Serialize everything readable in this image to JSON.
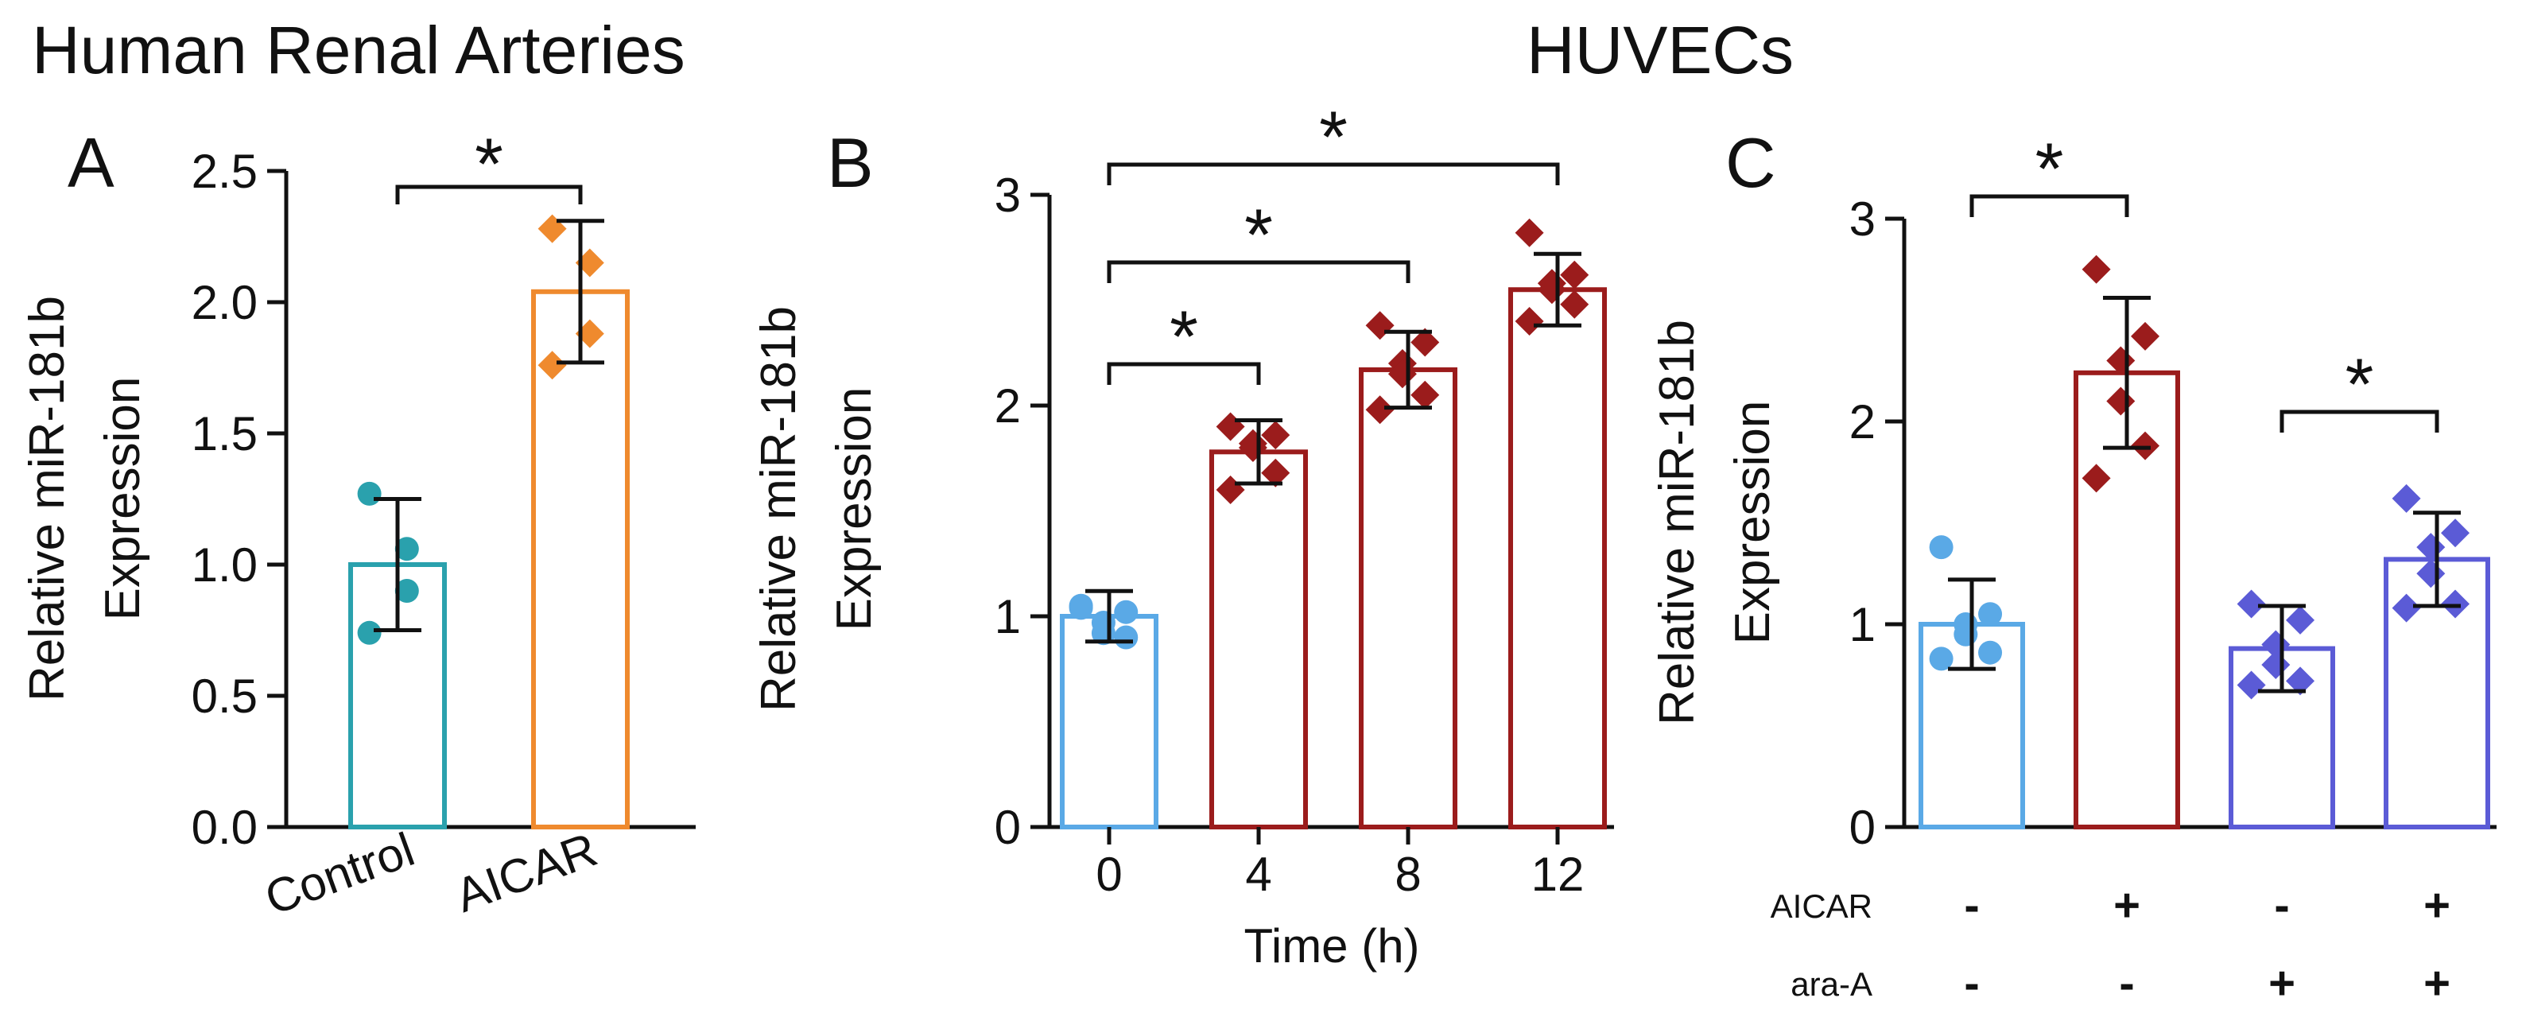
{
  "titles": {
    "left": "Human Renal Arteries",
    "right": "HUVECs"
  },
  "chart_data": [
    {
      "panel": "A",
      "type": "bar",
      "title": "Human Renal Arteries",
      "ylabel": [
        "Relative miR-181b",
        "Expression"
      ],
      "xlabel": "",
      "ylim": [
        0,
        2.5
      ],
      "yticks": [
        "0.0",
        "0.5",
        "1.0",
        "1.5",
        "2.0",
        "2.5"
      ],
      "ytick_values": [
        0,
        0.5,
        1.0,
        1.5,
        2.0,
        2.5
      ],
      "categories": [
        "Control",
        "AICAR"
      ],
      "values": [
        1.0,
        2.04
      ],
      "errors": [
        0.25,
        0.27
      ],
      "colors": [
        "#2aa1ad",
        "#ef8a2e"
      ],
      "markers": [
        "circle",
        "diamond"
      ],
      "points": [
        [
          1.27,
          1.06,
          0.9,
          0.74
        ],
        [
          2.28,
          2.15,
          1.88,
          1.76
        ]
      ],
      "significance": [
        {
          "from": 0,
          "to": 1,
          "label": "*"
        }
      ]
    },
    {
      "panel": "B",
      "type": "bar",
      "title": "HUVECs",
      "ylabel": [
        "Relative miR-181b",
        "Expression"
      ],
      "xlabel": "Time (h)",
      "ylim": [
        0,
        3
      ],
      "yticks": [
        "0",
        "1",
        "2",
        "3"
      ],
      "ytick_values": [
        0,
        1,
        2,
        3
      ],
      "categories": [
        "0",
        "4",
        "8",
        "12"
      ],
      "values": [
        1.0,
        1.78,
        2.17,
        2.55
      ],
      "errors": [
        0.12,
        0.15,
        0.18,
        0.17
      ],
      "colors": [
        "#5aa9e6",
        "#9b1c1c",
        "#9b1c1c",
        "#9b1c1c"
      ],
      "markers": [
        "circle",
        "diamond",
        "diamond",
        "diamond"
      ],
      "points": [
        [
          1.04,
          1.02,
          0.97,
          0.92,
          0.9,
          1.05
        ],
        [
          1.9,
          1.86,
          1.82,
          1.8,
          1.68,
          1.6
        ],
        [
          2.38,
          2.3,
          2.2,
          2.15,
          2.05,
          1.98
        ],
        [
          2.82,
          2.62,
          2.58,
          2.55,
          2.48,
          2.4
        ]
      ],
      "significance": [
        {
          "from": 0,
          "to": 1,
          "label": "*"
        },
        {
          "from": 0,
          "to": 2,
          "label": "*"
        },
        {
          "from": 0,
          "to": 3,
          "label": "*"
        }
      ]
    },
    {
      "panel": "C",
      "type": "bar",
      "title": "",
      "ylabel": [
        "Relative miR-181b",
        "Expression"
      ],
      "xlabel": "",
      "ylim": [
        0,
        3
      ],
      "yticks": [
        "0",
        "1",
        "2",
        "3"
      ],
      "ytick_values": [
        0,
        1,
        2,
        3
      ],
      "categories": [
        "-/-",
        "+/-",
        "-/+",
        "+/+"
      ],
      "values": [
        1.0,
        2.24,
        0.88,
        1.32
      ],
      "errors": [
        0.22,
        0.37,
        0.21,
        0.23
      ],
      "colors": [
        "#5aa9e6",
        "#9b1c1c",
        "#5b5bd6",
        "#5b5bd6"
      ],
      "markers": [
        "circle",
        "diamond",
        "diamond",
        "diamond"
      ],
      "points": [
        [
          1.38,
          1.05,
          1.0,
          0.95,
          0.86,
          0.83
        ],
        [
          2.75,
          2.42,
          2.3,
          2.1,
          1.88,
          1.72
        ],
        [
          1.1,
          1.02,
          0.9,
          0.8,
          0.72,
          0.7
        ],
        [
          1.62,
          1.45,
          1.38,
          1.25,
          1.1,
          1.08
        ]
      ],
      "conditions": [
        {
          "label": "AICAR",
          "signs": [
            "-",
            "+",
            "-",
            "+"
          ]
        },
        {
          "label": "ara-A",
          "signs": [
            "-",
            "-",
            "+",
            "+"
          ]
        }
      ],
      "significance": [
        {
          "from": 0,
          "to": 1,
          "label": "*"
        },
        {
          "from": 2,
          "to": 3,
          "label": "*"
        }
      ]
    }
  ]
}
